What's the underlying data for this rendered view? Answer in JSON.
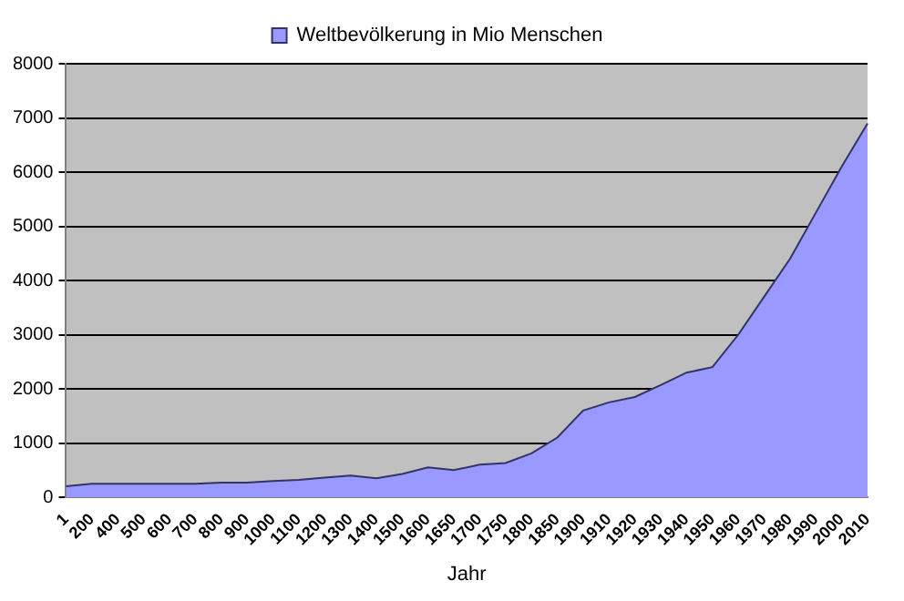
{
  "chart_data": {
    "type": "area",
    "xlabel": "Jahr",
    "categories": [
      "1",
      "200",
      "400",
      "500",
      "600",
      "700",
      "800",
      "900",
      "1000",
      "1100",
      "1200",
      "1300",
      "1400",
      "1500",
      "1600",
      "1650",
      "1700",
      "1750",
      "1800",
      "1850",
      "1900",
      "1910",
      "1920",
      "1930",
      "1940",
      "1950",
      "1960",
      "1970",
      "1980",
      "1990",
      "2000",
      "2010"
    ],
    "series": [
      {
        "name": "Weltbevölkerung in Mio Menschen",
        "color": "#9999ff",
        "values": [
          200,
          250,
          250,
          250,
          250,
          250,
          270,
          270,
          300,
          320,
          360,
          400,
          350,
          430,
          550,
          500,
          600,
          630,
          810,
          1100,
          1600,
          1750,
          1850,
          2070,
          2300,
          2400,
          3000,
          3700,
          4400,
          5250,
          6100,
          6900
        ]
      }
    ],
    "ylim": [
      0,
      8000
    ],
    "yticks": [
      0,
      1000,
      2000,
      3000,
      4000,
      5000,
      6000,
      7000,
      8000
    ],
    "grid": "y",
    "legend": "top"
  }
}
